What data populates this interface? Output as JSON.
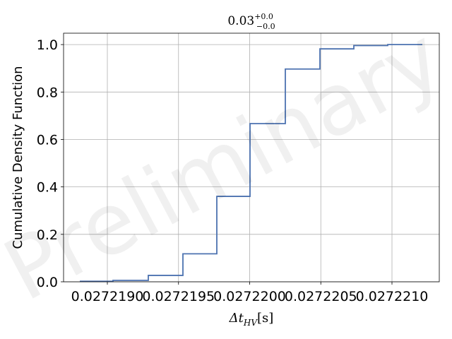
{
  "chart_data": {
    "type": "step",
    "title": {
      "main": "0.03",
      "upper": "+0.0",
      "lower": "−0.0"
    },
    "x_label": {
      "main": "Δt",
      "subscript": "HV",
      "unit": "[s]"
    },
    "y_label": "Cumulative Density Function",
    "watermark": "Preliminary",
    "x": [
      0.0272188065,
      0.0272190397,
      0.0272192878,
      0.027219531,
      0.0272197692,
      0.0272200025,
      0.0272202506,
      0.0272204938,
      0.027220732,
      0.02722097,
      0.0272212134
    ],
    "series": [
      {
        "name": "CDF",
        "color": "#4c72b0",
        "values": [
          0.002,
          0.006,
          0.027,
          0.118,
          0.36,
          0.667,
          0.897,
          0.982,
          0.996,
          1.0,
          1.0
        ]
      }
    ],
    "xlim": [
      0.0272186923,
      0.0272213325
    ],
    "ylim": [
      0,
      1.048
    ],
    "xticks": [
      {
        "value": 0.027219,
        "label": "0.0272190"
      },
      0.0272195,
      {
        "value": 0.02722,
        "label": "0.0272200"
      },
      0.0272205,
      {
        "value": 0.027221,
        "label": "0.0272210"
      }
    ],
    "yticks": [
      {
        "value": 0,
        "label": "0.0"
      },
      0.2,
      0.4,
      0.6,
      0.8,
      {
        "value": 1,
        "label": "1.0"
      }
    ],
    "grid": true
  }
}
